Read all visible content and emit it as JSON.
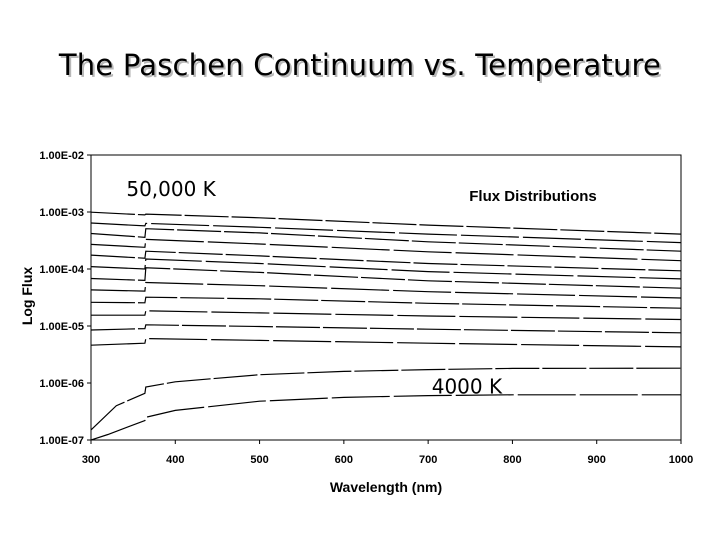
{
  "slide": {
    "title": "The Paschen Continuum vs. Temperature"
  },
  "chart_data": {
    "type": "line",
    "title": "Flux Distributions",
    "xlabel": "Wavelength (nm)",
    "ylabel": "Log Flux",
    "xlim": [
      300,
      1000
    ],
    "ylim": [
      1e-07,
      0.01
    ],
    "yscale": "log",
    "xticks": [
      "300",
      "400",
      "500",
      "600",
      "700",
      "800",
      "900",
      "1000"
    ],
    "yticks": [
      "1.00E-07",
      "1.00E-06",
      "1.00E-05",
      "1.00E-04",
      "1.00E-03",
      "1.00E-02"
    ],
    "grid": false,
    "legend": "none",
    "balmer_jump_nm": 364,
    "series": [
      {
        "values": [
          [
            300,
            0.00099
          ],
          [
            364,
            0.00089
          ],
          [
            365,
            0.00092
          ],
          [
            500,
            0.00079
          ],
          [
            700,
            0.00059
          ],
          [
            1000,
            0.00041
          ]
        ]
      },
      {
        "values": [
          [
            300,
            0.00064
          ],
          [
            364,
            0.00057
          ],
          [
            365,
            0.00063
          ],
          [
            500,
            0.00054
          ],
          [
            700,
            0.00041
          ],
          [
            1000,
            0.00029
          ]
        ]
      },
      {
        "values": [
          [
            300,
            0.00042
          ],
          [
            364,
            0.00036
          ],
          [
            365,
            0.00051
          ],
          [
            500,
            0.00043
          ],
          [
            700,
            0.0003
          ],
          [
            1000,
            0.000205
          ]
        ]
      },
      {
        "values": [
          [
            300,
            0.00027
          ],
          [
            364,
            0.00024
          ],
          [
            365,
            0.00033
          ],
          [
            500,
            0.000275
          ],
          [
            700,
            0.0002
          ],
          [
            1000,
            0.00014
          ]
        ]
      },
      {
        "values": [
          [
            300,
            0.000175
          ],
          [
            364,
            0.000155
          ],
          [
            365,
            0.000205
          ],
          [
            500,
            0.00017
          ],
          [
            700,
            0.000125
          ],
          [
            1000,
            9.3e-05
          ]
        ]
      },
      {
        "values": [
          [
            300,
            0.00011
          ],
          [
            364,
            0.0001
          ],
          [
            365,
            0.00015
          ],
          [
            500,
            0.000125
          ],
          [
            700,
            9e-05
          ],
          [
            1000,
            6.7e-05
          ]
        ]
      },
      {
        "values": [
          [
            300,
            6.8e-05
          ],
          [
            364,
            6.3e-05
          ],
          [
            365,
            0.000105
          ],
          [
            500,
            8.7e-05
          ],
          [
            700,
            6.2e-05
          ],
          [
            1000,
            4.6e-05
          ]
        ]
      },
      {
        "values": [
          [
            300,
            4.3e-05
          ],
          [
            364,
            4.1e-05
          ],
          [
            365,
            5.8e-05
          ],
          [
            500,
            5.1e-05
          ],
          [
            700,
            4e-05
          ],
          [
            1000,
            3.1e-05
          ]
        ]
      },
      {
        "values": [
          [
            300,
            2.6e-05
          ],
          [
            364,
            2.55e-05
          ],
          [
            365,
            3.2e-05
          ],
          [
            500,
            3e-05
          ],
          [
            700,
            2.5e-05
          ],
          [
            1000,
            2.05e-05
          ]
        ]
      },
      {
        "values": [
          [
            300,
            1.55e-05
          ],
          [
            364,
            1.55e-05
          ],
          [
            365,
            1.85e-05
          ],
          [
            500,
            1.7e-05
          ],
          [
            700,
            1.5e-05
          ],
          [
            1000,
            1.3e-05
          ]
        ]
      },
      {
        "values": [
          [
            300,
            8.5e-06
          ],
          [
            364,
            9e-06
          ],
          [
            365,
            1.05e-05
          ],
          [
            500,
            9.8e-06
          ],
          [
            700,
            8.8e-06
          ],
          [
            1000,
            7.6e-06
          ]
        ]
      },
      {
        "values": [
          [
            300,
            4.6e-06
          ],
          [
            364,
            5e-06
          ],
          [
            365,
            6e-06
          ],
          [
            500,
            5.6e-06
          ],
          [
            700,
            5e-06
          ],
          [
            1000,
            4.3e-06
          ]
        ]
      },
      {
        "values": [
          [
            300,
            1.5e-07
          ],
          [
            330,
            4e-07
          ],
          [
            364,
            6.6e-07
          ],
          [
            365,
            8.5e-07
          ],
          [
            400,
            1.05e-06
          ],
          [
            500,
            1.4e-06
          ],
          [
            600,
            1.6e-06
          ],
          [
            700,
            1.72e-06
          ],
          [
            800,
            1.8e-06
          ],
          [
            1000,
            1.82e-06
          ]
        ]
      },
      {
        "values": [
          [
            300,
            1e-07
          ],
          [
            320,
            1.25e-07
          ],
          [
            364,
            2.2e-07
          ],
          [
            365,
            2.5e-07
          ],
          [
            400,
            3.3e-07
          ],
          [
            500,
            4.8e-07
          ],
          [
            600,
            5.6e-07
          ],
          [
            700,
            6e-07
          ],
          [
            800,
            6.2e-07
          ],
          [
            1000,
            6.2e-07
          ]
        ]
      }
    ],
    "annotations": [
      {
        "text": "50,000 K",
        "x": 395,
        "y": 0.0019
      },
      {
        "text": "4000 K",
        "x": 746,
        "y": 6.5e-07
      }
    ]
  }
}
